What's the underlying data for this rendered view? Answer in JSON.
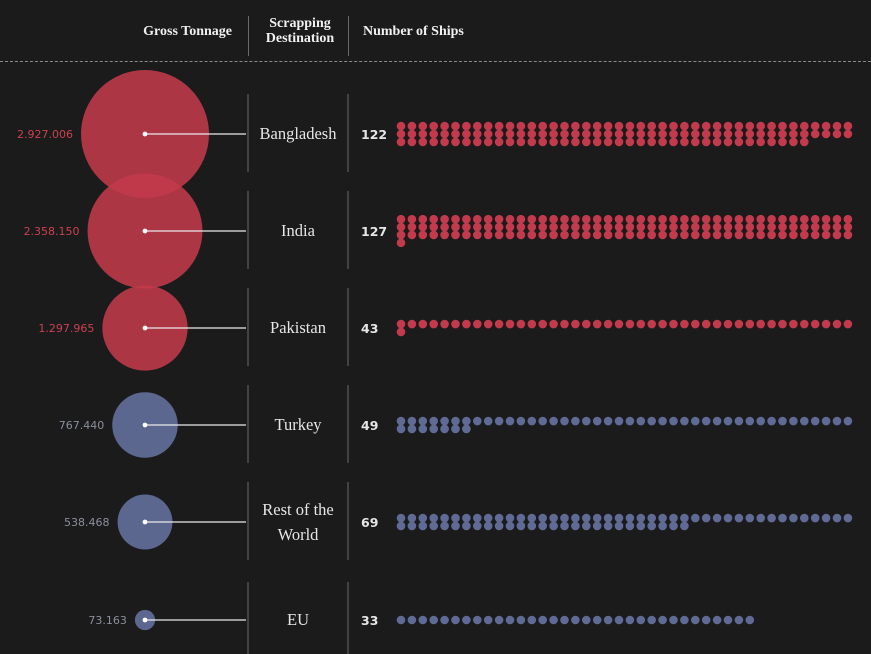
{
  "headers": {
    "gross": "Gross Tonnage",
    "destination_line1": "Scrapping",
    "destination_line2": "Destination",
    "ships": "Number of Ships"
  },
  "colors": {
    "south_asia": "#c23a4b",
    "other": "#5f6b95",
    "south_asia_label": "#c9424f",
    "other_label": "#8a8f9c"
  },
  "chart_data": {
    "type": "proportional-bubble-and-dot-matrix",
    "headers": [
      "Gross Tonnage",
      "Scrapping Destination",
      "Number of Ships"
    ],
    "rows": [
      {
        "destination": [
          "Bangladesh"
        ],
        "gross_tonnage": 2927006,
        "tonnage_label": "2.927.006",
        "ships": 122,
        "group": "south_asia"
      },
      {
        "destination": [
          "India"
        ],
        "gross_tonnage": 2358150,
        "tonnage_label": "2.358.150",
        "ships": 127,
        "group": "south_asia"
      },
      {
        "destination": [
          "Pakistan"
        ],
        "gross_tonnage": 1297965,
        "tonnage_label": "1.297.965",
        "ships": 43,
        "group": "south_asia"
      },
      {
        "destination": [
          "Turkey"
        ],
        "gross_tonnage": 767440,
        "tonnage_label": "767.440",
        "ships": 49,
        "group": "other"
      },
      {
        "destination": [
          "Rest of the",
          "World"
        ],
        "gross_tonnage": 538468,
        "tonnage_label": "538.468",
        "ships": 69,
        "group": "other"
      },
      {
        "destination": [
          "EU"
        ],
        "gross_tonnage": 73163,
        "tonnage_label": "73.163",
        "ships": 33,
        "group": "other"
      }
    ]
  }
}
